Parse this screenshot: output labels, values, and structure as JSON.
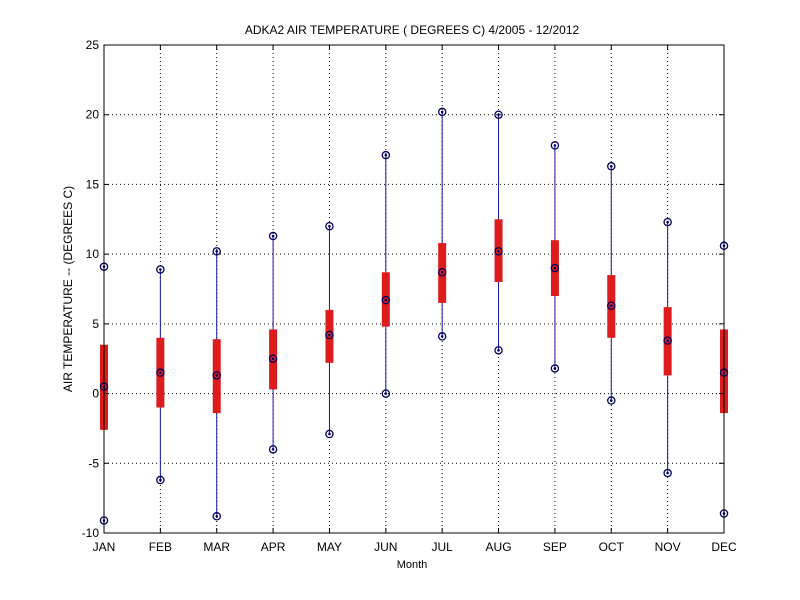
{
  "chart_data": {
    "type": "boxplot",
    "title": "ADKA2  AIR TEMPERATURE ( DEGREES C) 4/2005 - 12/2012",
    "xlabel": "Month",
    "ylabel": "AIR TEMPERATURE -- (DEGREES C)",
    "ylim": [
      -10,
      25
    ],
    "yticks": [
      -10,
      -5,
      0,
      5,
      10,
      15,
      20,
      25
    ],
    "grid": true,
    "categories": [
      "JAN",
      "FEB",
      "MAR",
      "APR",
      "MAY",
      "JUN",
      "JUL",
      "AUG",
      "SEP",
      "OCT",
      "NOV",
      "DEC"
    ],
    "series": [
      {
        "min": [
          -9.1,
          -6.2,
          -8.8,
          -4.0,
          -2.9,
          0.0,
          4.1,
          3.1,
          1.8,
          -0.5,
          -5.7,
          -8.6
        ],
        "q1": [
          -2.6,
          -1.0,
          -1.4,
          0.3,
          2.2,
          4.8,
          6.5,
          8.0,
          7.0,
          4.0,
          1.3,
          -1.4
        ],
        "median": [
          0.5,
          1.5,
          1.3,
          2.5,
          4.2,
          6.7,
          8.7,
          10.2,
          9.0,
          6.3,
          3.8,
          1.5
        ],
        "q3": [
          3.5,
          4.0,
          3.9,
          4.6,
          6.0,
          8.7,
          10.8,
          12.5,
          11.0,
          8.5,
          6.2,
          4.6
        ],
        "max": [
          9.1,
          8.9,
          10.2,
          11.3,
          12.0,
          17.1,
          20.2,
          20.0,
          17.8,
          16.3,
          12.3,
          10.6
        ]
      }
    ],
    "colors": {
      "box": "#dd1c1c",
      "whisker": "#1a1aa6",
      "marker": "#000060",
      "axis": "#000000",
      "grid": "#000000"
    }
  }
}
